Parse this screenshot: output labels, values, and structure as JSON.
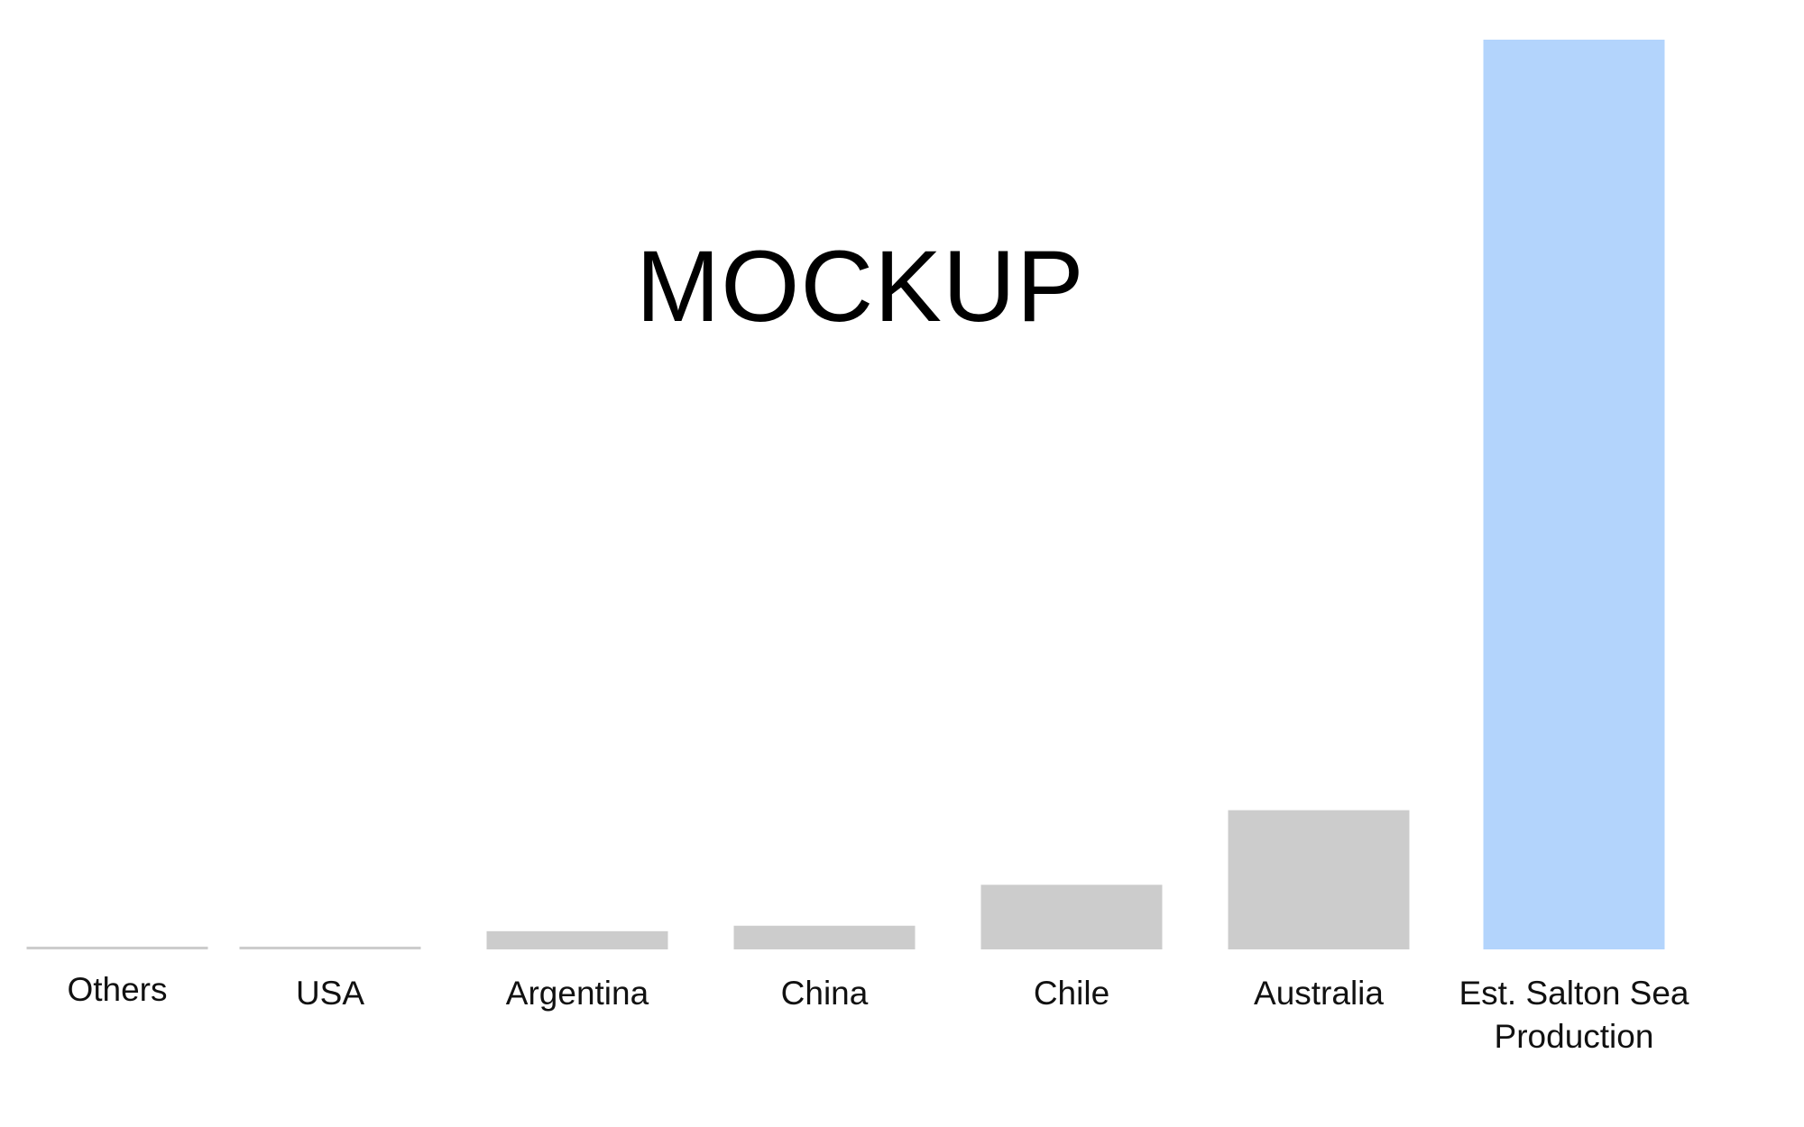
{
  "watermark": "MOCKUP",
  "chart_data": {
    "type": "bar",
    "categories": [
      "Others",
      "USA",
      "Argentina",
      "China",
      "Chile",
      "Australia",
      "Est. Salton Sea\nProduction"
    ],
    "values": [
      0.3,
      0.3,
      2.0,
      2.6,
      7.1,
      15.3,
      100
    ],
    "ylim": [
      0,
      100
    ],
    "grid": false,
    "title": "",
    "xlabel": "",
    "ylabel": "",
    "colors": {
      "default": "#cccccc",
      "highlight": "#b3d4fc"
    },
    "highlight_index": 6
  }
}
